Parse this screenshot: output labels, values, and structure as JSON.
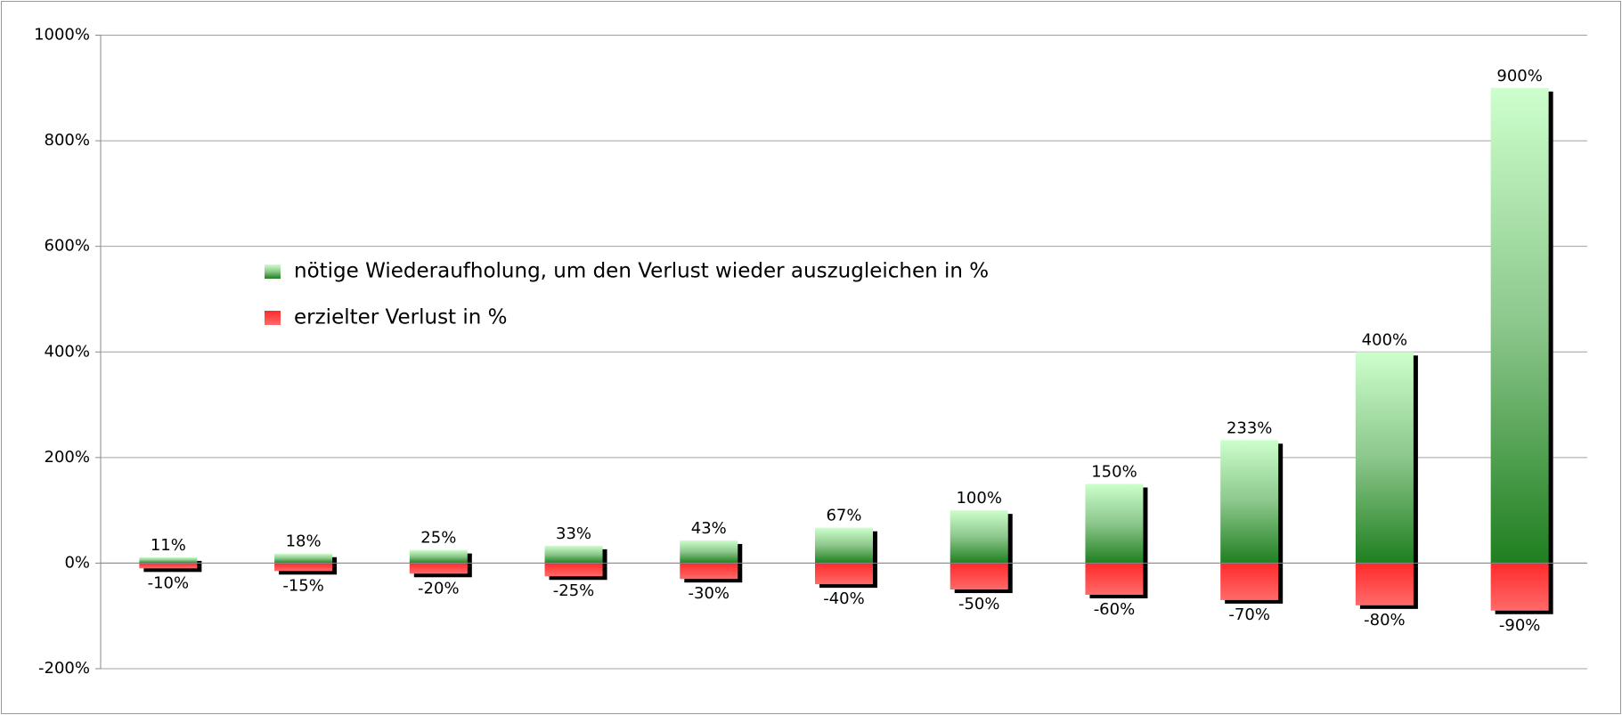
{
  "chart_data": {
    "type": "bar",
    "categories": [
      null,
      null,
      null,
      null,
      null,
      null,
      null,
      null,
      null,
      null,
      null
    ],
    "series": [
      {
        "name": "nötige Wiederaufholung, um den Verlust wieder auszugleichen in %",
        "color": "#2e8b2e",
        "values": [
          11,
          18,
          25,
          33,
          43,
          67,
          100,
          150,
          233,
          400,
          900
        ],
        "value_labels": [
          "11%",
          "18%",
          "25%",
          "33%",
          "43%",
          "67%",
          "100%",
          "150%",
          "233%",
          "400%",
          "900%"
        ]
      },
      {
        "name": "erzielter Verlust in %",
        "color": "#ff3b3b",
        "values": [
          -10,
          -15,
          -20,
          -25,
          -30,
          -40,
          -50,
          -60,
          -70,
          -80,
          -90
        ],
        "value_labels": [
          "-10%",
          "-15%",
          "-20%",
          "-25%",
          "-30%",
          "-40%",
          "-50%",
          "-60%",
          "-70%",
          "-80%",
          "-90%"
        ]
      }
    ],
    "ylim": [
      -200,
      1000
    ],
    "yticks": [
      {
        "value": -200,
        "label": "-200%"
      },
      {
        "value": 0,
        "label": "0%"
      },
      {
        "value": 200,
        "label": "200%"
      },
      {
        "value": 400,
        "label": "400%"
      },
      {
        "value": 600,
        "label": "600%"
      },
      {
        "value": 800,
        "label": "800%"
      },
      {
        "value": 1000,
        "label": "1000%"
      }
    ],
    "grid": true
  }
}
